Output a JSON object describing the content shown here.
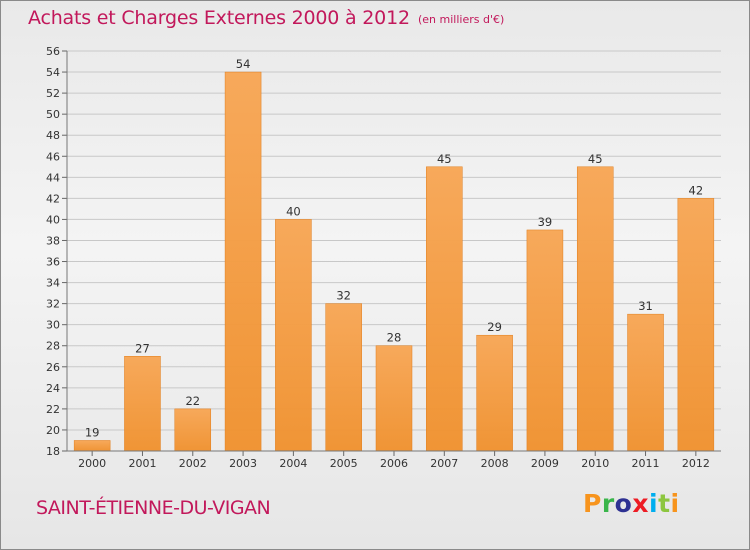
{
  "chart_data": {
    "type": "bar",
    "title": "Achats et Charges Externes 2000 à 2012",
    "unit_note": "(en milliers d'€)",
    "categories": [
      "2000",
      "2001",
      "2002",
      "2003",
      "2004",
      "2005",
      "2006",
      "2007",
      "2008",
      "2009",
      "2010",
      "2011",
      "2012"
    ],
    "values": [
      19,
      27,
      22,
      54,
      40,
      32,
      28,
      45,
      29,
      39,
      45,
      31,
      42
    ],
    "ylim": [
      18,
      56
    ],
    "ytick_step": 2,
    "xlabel": "",
    "ylabel": "",
    "grid": true,
    "bar_color": "#f0902c",
    "bar_highlight": "#f7a95b",
    "label_color": "#c2185b"
  },
  "footer": {
    "city": "SAINT-ÉTIENNE-DU-VIGAN",
    "logo": "Proxiti",
    "logo_colors": [
      "#f7941d",
      "#39b54a",
      "#2e3192",
      "#ed1c24",
      "#00aeef",
      "#8dc63f",
      "#f7941d"
    ]
  }
}
